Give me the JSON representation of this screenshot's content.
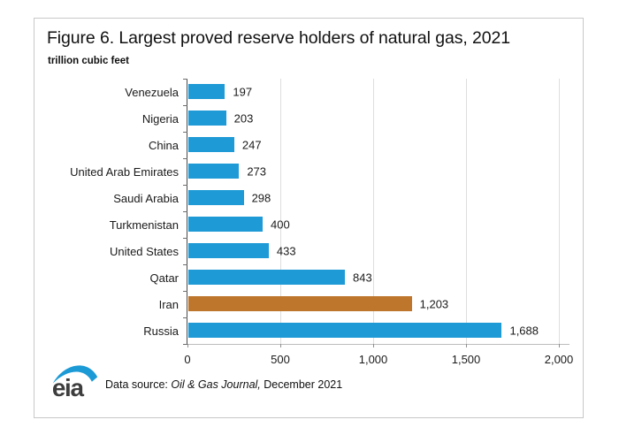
{
  "figure": {
    "title": "Figure 6. Largest proved reserve holders of natural gas, 2021",
    "units": "trillion cubic feet",
    "logo_text": "eia",
    "footer": {
      "datasource_prefix": "Data source: ",
      "datasource_italic": "Oil & Gas Journal,",
      "datasource_suffix": " December 2021"
    }
  },
  "colors": {
    "bar_default": "#1e9ad6",
    "bar_highlight": "#be752c",
    "gridline": "#dedede",
    "axis": "#4a4a4a",
    "card_border": "#c8c8c8",
    "text": "#1a1a1a",
    "logo_swoosh": "#1c9ad6",
    "logo_text": "#3d3d3d"
  },
  "chart_data": {
    "type": "bar",
    "orientation": "horizontal",
    "title": "Figure 6. Largest proved reserve holders of natural gas, 2021",
    "xlabel": "",
    "ylabel": "trillion cubic feet",
    "categories": [
      "Venezuela",
      "Nigeria",
      "China",
      "United Arab Emirates",
      "Saudi Arabia",
      "Turkmenistan",
      "United States",
      "Qatar",
      "Iran",
      "Russia"
    ],
    "values": [
      197,
      203,
      247,
      273,
      298,
      400,
      433,
      843,
      1203,
      1688
    ],
    "value_labels": [
      "197",
      "203",
      "247",
      "273",
      "298",
      "400",
      "433",
      "843",
      "1,203",
      "1,688"
    ],
    "bar_colors": [
      "blue",
      "blue",
      "blue",
      "blue",
      "blue",
      "blue",
      "blue",
      "blue",
      "orange",
      "blue"
    ],
    "highlight_category": "Iran",
    "xlim": [
      0,
      2000
    ],
    "xticks": [
      0,
      500,
      1000,
      1500,
      2000
    ],
    "xtick_labels": [
      "0",
      "500",
      "1,000",
      "1,500",
      "2,000"
    ],
    "grid": "vertical",
    "legend": "none"
  }
}
